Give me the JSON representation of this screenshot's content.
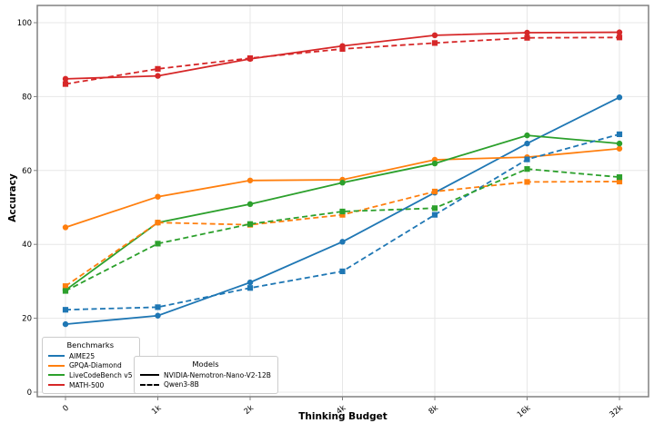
{
  "chart_data": {
    "type": "line",
    "title": "",
    "xlabel": "Thinking Budget",
    "ylabel": "Accuracy",
    "categories": [
      "0",
      "1k",
      "2k",
      "4k",
      "8k",
      "16k",
      "32k"
    ],
    "yticks": [
      0,
      20,
      40,
      60,
      80,
      100
    ],
    "ylim": [
      -1.5,
      104.7
    ],
    "grid": true,
    "legend": {
      "benchmarks_title": "Benchmarks",
      "models_title": "Models"
    },
    "benchmarks": [
      {
        "name": "AIME25",
        "color": "#1f77b4"
      },
      {
        "name": "GPQA-Diamond",
        "color": "#ff7f0e"
      },
      {
        "name": "LiveCodeBench v5",
        "color": "#2ca02c"
      },
      {
        "name": "MATH-500",
        "color": "#d62728"
      }
    ],
    "models": [
      {
        "name": "NVIDIA-Nemotron-Nano-V2-12B",
        "line_style": "solid",
        "marker": "circle"
      },
      {
        "name": "Qwen3-8B",
        "line_style": "dashed",
        "marker": "square"
      }
    ],
    "series": [
      {
        "benchmark": "AIME25",
        "model": "NVIDIA-Nemotron-Nano-V2-12B",
        "values": [
          18.4,
          20.7,
          29.7,
          40.7,
          54.0,
          67.3,
          79.8
        ]
      },
      {
        "benchmark": "GPQA-Diamond",
        "model": "NVIDIA-Nemotron-Nano-V2-12B",
        "values": [
          44.6,
          52.9,
          57.3,
          57.5,
          62.9,
          63.6,
          65.9
        ]
      },
      {
        "benchmark": "LiveCodeBench v5",
        "model": "NVIDIA-Nemotron-Nano-V2-12B",
        "values": [
          27.6,
          45.9,
          50.9,
          56.7,
          61.9,
          69.5,
          67.3
        ]
      },
      {
        "benchmark": "MATH-500",
        "model": "NVIDIA-Nemotron-Nano-V2-12B",
        "values": [
          84.8,
          85.6,
          90.2,
          93.7,
          96.6,
          97.3,
          97.4
        ]
      },
      {
        "benchmark": "AIME25",
        "model": "Qwen3-8B",
        "values": [
          22.3,
          23.0,
          28.2,
          32.7,
          48.0,
          63.0,
          69.8
        ]
      },
      {
        "benchmark": "GPQA-Diamond",
        "model": "Qwen3-8B",
        "values": [
          28.7,
          45.9,
          45.3,
          48.0,
          54.3,
          56.9,
          57.0
        ]
      },
      {
        "benchmark": "LiveCodeBench v5",
        "model": "Qwen3-8B",
        "values": [
          27.4,
          40.2,
          45.5,
          48.9,
          49.8,
          60.4,
          58.2
        ]
      },
      {
        "benchmark": "MATH-500",
        "model": "Qwen3-8B",
        "values": [
          83.4,
          87.5,
          90.4,
          92.9,
          94.5,
          95.9,
          96.0
        ]
      }
    ],
    "colors": {
      "grid": "#e7e7e7",
      "spine": "#808080",
      "text": "#000000",
      "legend_border": "#cccccc"
    }
  }
}
